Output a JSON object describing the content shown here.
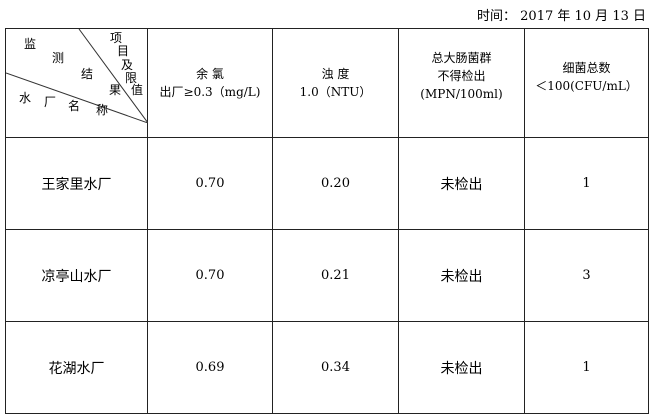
{
  "date": "时间： 2017 年 10 月 13 日",
  "corner": {
    "top": [
      "监",
      "测",
      "结",
      "果"
    ],
    "item": [
      "项",
      "目",
      "及",
      "限",
      "值"
    ],
    "bottom": [
      "水",
      "厂",
      "名",
      "称"
    ]
  },
  "headers": [
    {
      "line1": "余 氯",
      "line2": "出厂≥0.3（mg/L)"
    },
    {
      "line1": "浊 度",
      "line2": "1.0（NTU）"
    },
    {
      "line1": "总大肠菌群",
      "line2": "不得检出",
      "line3": "(MPN/100ml)"
    },
    {
      "line1": "细菌总数",
      "line2": "＜100(CFU/mL）"
    }
  ],
  "rows": [
    {
      "name": "王家里水厂",
      "chlorine": "0.70",
      "turbidity": "0.20",
      "coliform": "未检出",
      "bacteria": "1"
    },
    {
      "name": "凉亭山水厂",
      "chlorine": "0.70",
      "turbidity": "0.21",
      "coliform": "未检出",
      "bacteria": "3"
    },
    {
      "name": "花湖水厂",
      "chlorine": "0.69",
      "turbidity": "0.34",
      "coliform": "未检出",
      "bacteria": "1"
    }
  ]
}
